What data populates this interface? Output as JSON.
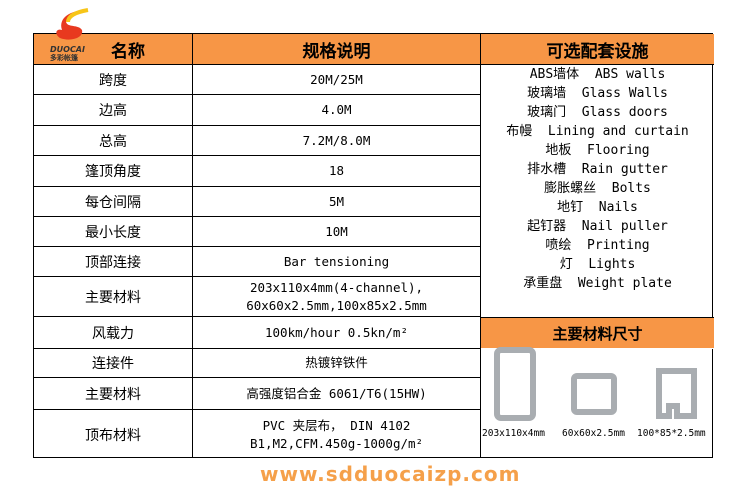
{
  "logo": {
    "text": "DUOCAI",
    "subtext": "多彩帐篷"
  },
  "headers": {
    "name": "名称",
    "spec": "规格说明",
    "options": "可选配套设施"
  },
  "rows": [
    {
      "name": "跨度",
      "spec": "20M/25M"
    },
    {
      "name": "边高",
      "spec": "4.0M"
    },
    {
      "name": "总高",
      "spec": "7.2M/8.0M"
    },
    {
      "name": "篷顶角度",
      "spec": "18"
    },
    {
      "name": "每仓间隔",
      "spec": "5M"
    },
    {
      "name": "最小长度",
      "spec": "10M"
    },
    {
      "name": "顶部连接",
      "spec": "Bar tensioning"
    },
    {
      "name": "主要材料",
      "spec": "203x110x4mm(4-channel),",
      "spec2": "60x60x2.5mm,100x85x2.5mm"
    },
    {
      "name": "风载力",
      "spec": "100km/hour   0.5kn/m²"
    },
    {
      "name": "连接件",
      "spec": "热镀锌铁件"
    },
    {
      "name": "主要材料",
      "spec": "高强度铝合金 6061/T6(15HW)"
    },
    {
      "name": "顶布材料",
      "spec": "PVC 夹层布， DIN 4102",
      "spec2": "B1,M2,CFM.450g-1000g/m²"
    }
  ],
  "options": [
    "ABS墙体  ABS walls",
    "玻璃墙  Glass Walls",
    "玻璃门  Glass doors",
    "布幔  Lining and curtain",
    "地板  Flooring",
    "排水槽  Rain gutter",
    "膨胀螺丝  Bolts",
    "地钉  Nails",
    "起钉器  Nail puller",
    "喷绘  Printing",
    "灯  Lights",
    "承重盘  Weight plate"
  ],
  "materials": {
    "title": "主要材料尺寸",
    "items": [
      "203x110x4mm",
      "60x60x2.5mm",
      "100*85*2.5mm"
    ]
  },
  "watermark": "www.sdduocaizp.com",
  "colors": {
    "header": "#f79646",
    "watermark": "#f5a04a"
  }
}
